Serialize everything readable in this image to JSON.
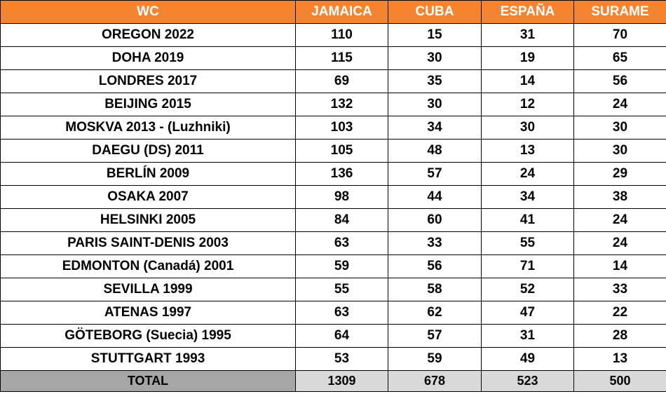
{
  "chart_data": {
    "type": "table",
    "columns": [
      "WC",
      "JAMAICA",
      "CUBA",
      "ESPAÑA",
      "SURAME"
    ],
    "rows": [
      [
        "OREGON 2022",
        "110",
        "15",
        "31",
        "70"
      ],
      [
        "DOHA 2019",
        "115",
        "30",
        "19",
        "65"
      ],
      [
        "LONDRES 2017",
        "69",
        "35",
        "14",
        "56"
      ],
      [
        "BEIJING 2015",
        "132",
        "30",
        "12",
        "24"
      ],
      [
        "MOSKVA 2013 - (Luzhniki)",
        "103",
        "34",
        "30",
        "30"
      ],
      [
        "DAEGU (DS) 2011",
        "105",
        "48",
        "13",
        "30"
      ],
      [
        "BERLÍN 2009",
        "136",
        "57",
        "24",
        "29"
      ],
      [
        "OSAKA 2007",
        "98",
        "44",
        "34",
        "38"
      ],
      [
        "HELSINKI 2005",
        "84",
        "60",
        "41",
        "24"
      ],
      [
        "PARIS SAINT-DENIS 2003",
        "63",
        "33",
        "55",
        "24"
      ],
      [
        "EDMONTON (Canadá) 2001",
        "59",
        "56",
        "71",
        "14"
      ],
      [
        "SEVILLA 1999",
        "55",
        "58",
        "52",
        "33"
      ],
      [
        "ATENAS 1997",
        "63",
        "62",
        "47",
        "22"
      ],
      [
        "GÖTEBORG (Suecia) 1995",
        "64",
        "57",
        "31",
        "28"
      ],
      [
        "STUTTGART 1993",
        "53",
        "59",
        "49",
        "13"
      ]
    ],
    "total": [
      "TOTAL",
      "1309",
      "678",
      "523",
      "500"
    ]
  },
  "colors": {
    "header_bg": "#f58431",
    "header_text": "#ffffff",
    "total_label_bg": "#a6a6a6",
    "total_values_bg": "#d9d9d9",
    "border": "#000000"
  }
}
